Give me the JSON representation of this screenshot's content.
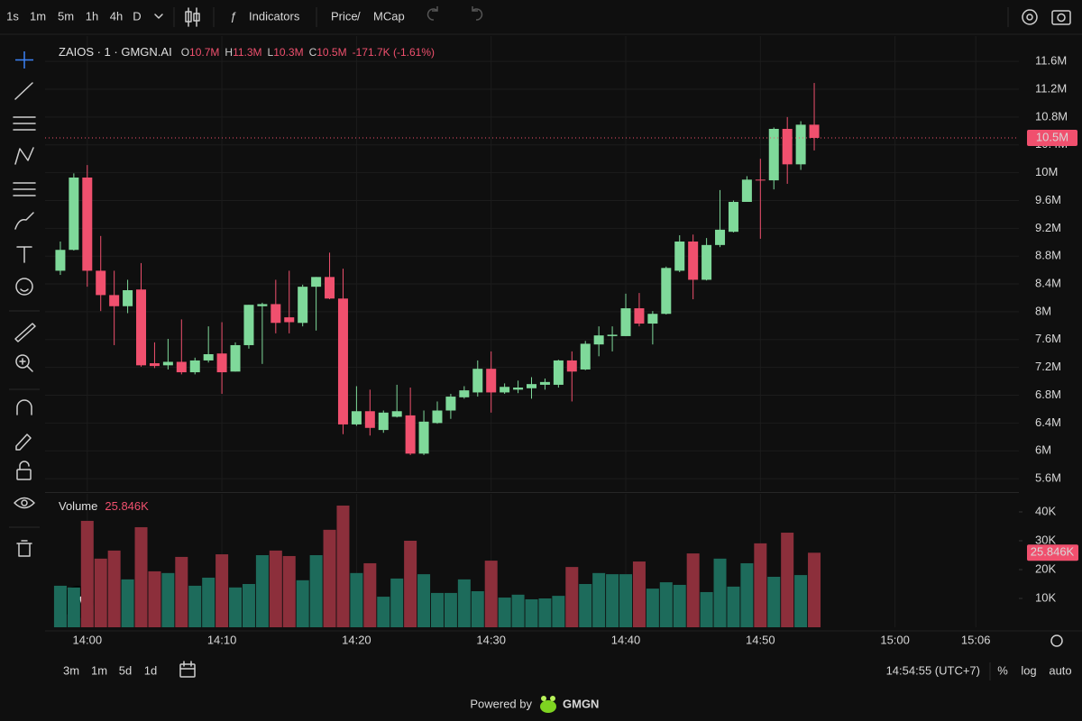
{
  "toolbar": {
    "intervals": [
      "1s",
      "1m",
      "5m",
      "1h",
      "4h",
      "D"
    ],
    "active_interval": "1m",
    "indicators": "Indicators",
    "price": "Price",
    "separator": "/",
    "mcap": "MCap"
  },
  "legend": {
    "symbol": "ZAIOS · 1 · GMGN.AI",
    "fields": [
      {
        "key": "O",
        "value": "10.7M"
      },
      {
        "key": "H",
        "value": "11.3M"
      },
      {
        "key": "L",
        "value": "10.3M"
      },
      {
        "key": "C",
        "value": "10.5M"
      }
    ],
    "change": "-171.7K (-1.61%)"
  },
  "chart_data": [
    {
      "type": "candlestick",
      "x": [
        "13:58",
        "13:59",
        "14:00",
        "14:01",
        "14:02",
        "14:03",
        "14:04",
        "14:05",
        "14:06",
        "14:07",
        "14:08",
        "14:09",
        "14:10",
        "14:11",
        "14:12",
        "14:13",
        "14:14",
        "14:15",
        "14:16",
        "14:17",
        "14:18",
        "14:19",
        "14:20",
        "14:21",
        "14:22",
        "14:23",
        "14:24",
        "14:25",
        "14:26",
        "14:27",
        "14:28",
        "14:29",
        "14:30",
        "14:31",
        "14:32",
        "14:33",
        "14:34",
        "14:35",
        "14:36",
        "14:37",
        "14:38",
        "14:39",
        "14:40",
        "14:41",
        "14:42",
        "14:43",
        "14:44",
        "14:45",
        "14:46",
        "14:47",
        "14:48",
        "14:49",
        "14:50",
        "14:51",
        "14:52",
        "14:53",
        "14:54"
      ],
      "open": [
        8.59,
        8.89,
        9.93,
        8.59,
        8.24,
        8.08,
        8.32,
        7.26,
        7.23,
        7.28,
        7.13,
        7.3,
        7.4,
        7.14,
        7.52,
        8.08,
        8.11,
        7.92,
        7.84,
        8.36,
        8.5,
        8.19,
        6.38,
        6.57,
        6.3,
        6.49,
        6.51,
        5.96,
        6.4,
        6.58,
        6.77,
        6.84,
        7.18,
        6.84,
        6.88,
        6.9,
        6.95,
        6.95,
        7.3,
        7.17,
        7.53,
        7.65,
        7.65,
        8.05,
        7.83,
        7.97,
        8.59,
        9.01,
        8.46,
        8.96,
        9.15,
        9.58,
        9.9,
        9.89,
        10.63,
        10.12,
        10.69
      ],
      "high": [
        9.01,
        9.99,
        10.11,
        9.09,
        8.59,
        8.46,
        8.7,
        7.56,
        7.61,
        7.89,
        7.34,
        7.79,
        7.85,
        7.56,
        8.1,
        8.13,
        8.46,
        8.59,
        8.39,
        8.5,
        8.85,
        8.62,
        6.93,
        6.88,
        6.58,
        6.95,
        6.91,
        6.58,
        6.71,
        6.82,
        6.93,
        7.3,
        7.43,
        6.97,
        7.01,
        7.06,
        7.04,
        7.31,
        7.43,
        7.58,
        7.79,
        7.79,
        8.26,
        8.27,
        8.01,
        8.65,
        9.1,
        9.11,
        9.06,
        9.75,
        9.6,
        9.95,
        10.2,
        10.65,
        10.8,
        10.74,
        11.29
      ],
      "low": [
        8.53,
        8.88,
        8.36,
        8.01,
        7.52,
        7.98,
        7.21,
        7.19,
        7.17,
        7.1,
        7.1,
        7.27,
        6.82,
        7.14,
        7.47,
        7.25,
        7.69,
        7.69,
        7.79,
        7.73,
        8.18,
        6.24,
        6.36,
        6.22,
        6.26,
        6.48,
        5.94,
        5.94,
        6.39,
        6.46,
        6.75,
        6.78,
        6.55,
        6.82,
        6.83,
        6.75,
        6.88,
        6.91,
        6.71,
        7.16,
        7.36,
        7.43,
        7.65,
        7.79,
        7.53,
        7.96,
        8.57,
        8.18,
        8.45,
        8.93,
        9.14,
        9.58,
        9.05,
        9.76,
        9.84,
        10.04,
        10.32
      ],
      "close": [
        8.89,
        9.93,
        8.59,
        8.24,
        8.08,
        8.31,
        7.23,
        7.22,
        7.28,
        7.13,
        7.3,
        7.39,
        7.13,
        7.52,
        8.1,
        8.11,
        7.84,
        7.85,
        8.36,
        8.5,
        8.19,
        6.38,
        6.57,
        6.33,
        6.55,
        6.57,
        5.96,
        6.42,
        6.58,
        6.78,
        6.87,
        7.18,
        6.84,
        6.92,
        6.91,
        6.96,
        6.99,
        7.3,
        7.14,
        7.54,
        7.66,
        7.67,
        8.05,
        7.83,
        7.97,
        8.63,
        9.01,
        8.46,
        8.96,
        9.18,
        9.58,
        9.9,
        9.89,
        10.63,
        10.12,
        10.69,
        10.5
      ],
      "up_color": "#7fd99a",
      "down_color": "#f0506e",
      "xlim": [
        "13:57",
        "15:09"
      ],
      "xticks": [
        "14:00",
        "14:10",
        "14:20",
        "14:30",
        "14:40",
        "14:50",
        "15:00",
        "15:06"
      ],
      "ylim": [
        5.42,
        11.9
      ],
      "yticks": [
        {
          "value": 11.6,
          "label": "11.6M"
        },
        {
          "value": 11.2,
          "label": "11.2M"
        },
        {
          "value": 10.8,
          "label": "10.8M"
        },
        {
          "value": 10.4,
          "label": "10.4M"
        },
        {
          "value": 10,
          "label": "10M"
        },
        {
          "value": 9.6,
          "label": "9.6M"
        },
        {
          "value": 9.2,
          "label": "9.2M"
        },
        {
          "value": 8.8,
          "label": "8.8M"
        },
        {
          "value": 8.4,
          "label": "8.4M"
        },
        {
          "value": 8,
          "label": "8M"
        },
        {
          "value": 7.6,
          "label": "7.6M"
        },
        {
          "value": 7.2,
          "label": "7.2M"
        },
        {
          "value": 6.8,
          "label": "6.8M"
        },
        {
          "value": 6.4,
          "label": "6.4M"
        },
        {
          "value": 6,
          "label": "6M"
        },
        {
          "value": 5.6,
          "label": "5.6M"
        }
      ],
      "last_price_label": "10.5M",
      "grid": true
    },
    {
      "type": "bar",
      "title": "Volume",
      "last_value_label": "25.846K",
      "values": [
        14.4,
        13.8,
        36.9,
        23.8,
        26.6,
        16.6,
        34.7,
        19.4,
        18.8,
        24.4,
        14.4,
        17.2,
        25.3,
        13.8,
        15,
        25,
        26.6,
        24.7,
        16.3,
        25,
        33.8,
        42.2,
        18.8,
        22.2,
        10.6,
        16.9,
        30,
        18.4,
        11.9,
        11.9,
        16.6,
        12.5,
        23.1,
        10.3,
        11.3,
        9.7,
        10,
        10.9,
        20.9,
        15,
        18.8,
        18.4,
        18.4,
        22.8,
        13.4,
        15.6,
        14.7,
        25.6,
        12.2,
        23.8,
        14.1,
        22.2,
        29.1,
        17.5,
        32.8,
        18.1,
        25.846
      ],
      "up_color": "#1d6b5b",
      "down_color": "#8c2f3b",
      "ylim": [
        0,
        46.25
      ],
      "yticks": [
        {
          "value": 40,
          "label": "40K"
        },
        {
          "value": 30,
          "label": "30K"
        },
        {
          "value": 20,
          "label": "20K"
        },
        {
          "value": 10,
          "label": "10K"
        }
      ]
    }
  ],
  "bottom_bar": {
    "ranges": [
      "3m",
      "1m",
      "5d",
      "1d"
    ],
    "clock": "14:54:55 (UTC+7)",
    "percent": "%",
    "log": "log",
    "auto": "auto"
  },
  "footer": {
    "powered_by": "Powered by",
    "brand": "GMGN"
  }
}
